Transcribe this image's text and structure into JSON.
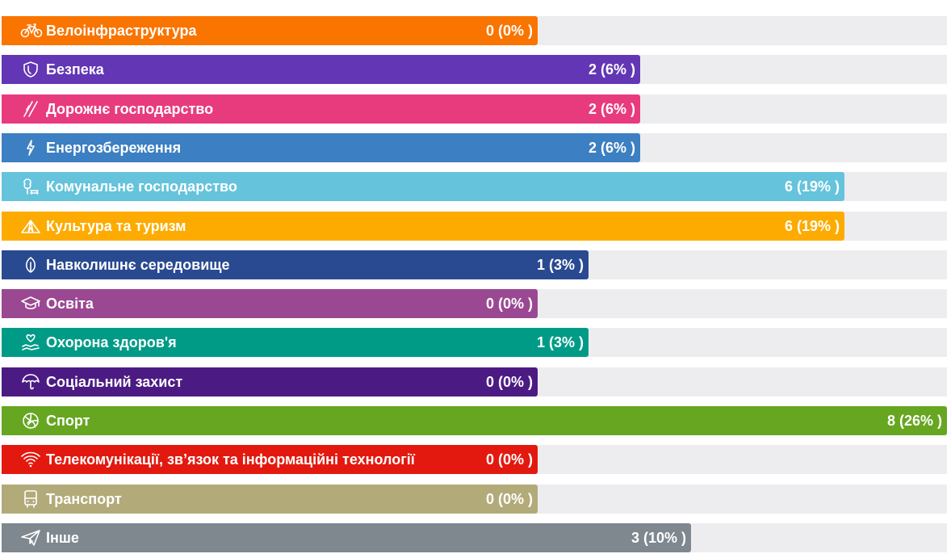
{
  "chart_data": {
    "type": "bar",
    "orientation": "horizontal",
    "categories": [
      "Велоінфраструктура",
      "Безпека",
      "Дорожнє господарство",
      "Енергозбереження",
      "Комунальне господарство",
      "Культура та туризм",
      "Навколишнє середовище",
      "Освіта",
      "Охорона здоров'я",
      "Соціальний захист",
      "Спорт",
      "Телекомунікації, зв’язок та інформаційні технології",
      "Транспорт",
      "Інше"
    ],
    "values": [
      0,
      2,
      2,
      2,
      6,
      6,
      1,
      0,
      1,
      0,
      8,
      0,
      0,
      3
    ],
    "value_labels": [
      "0 (0% )",
      "2 (6% )",
      "2 (6% )",
      "2 (6% )",
      "6 (19% )",
      "6 (19% )",
      "1 (3% )",
      "0 (0% )",
      "1 (3% )",
      "0 (0% )",
      "8 (26% )",
      "0 (0% )",
      "0 (0% )",
      "3 (10% )"
    ],
    "colors": [
      "#fa7400",
      "#6236b4",
      "#e83b7e",
      "#3c7fc2",
      "#65c3dc",
      "#fdab00",
      "#294a91",
      "#9b4893",
      "#009b87",
      "#4b1b83",
      "#66a621",
      "#e3190f",
      "#b3aa7a",
      "#7f878f"
    ],
    "icons": [
      "bicycle-icon",
      "shield-icon",
      "road-icon",
      "lightning-icon",
      "tree-bench-icon",
      "tent-icon",
      "leaf-icon",
      "graduation-cap-icon",
      "heart-hand-icon",
      "umbrella-icon",
      "volleyball-icon",
      "wifi-icon",
      "bus-icon",
      "paper-plane-icon"
    ],
    "xlim": [
      0,
      8
    ],
    "track_color": "#ededef",
    "grid": false,
    "title": "",
    "xlabel": "",
    "ylabel": ""
  }
}
